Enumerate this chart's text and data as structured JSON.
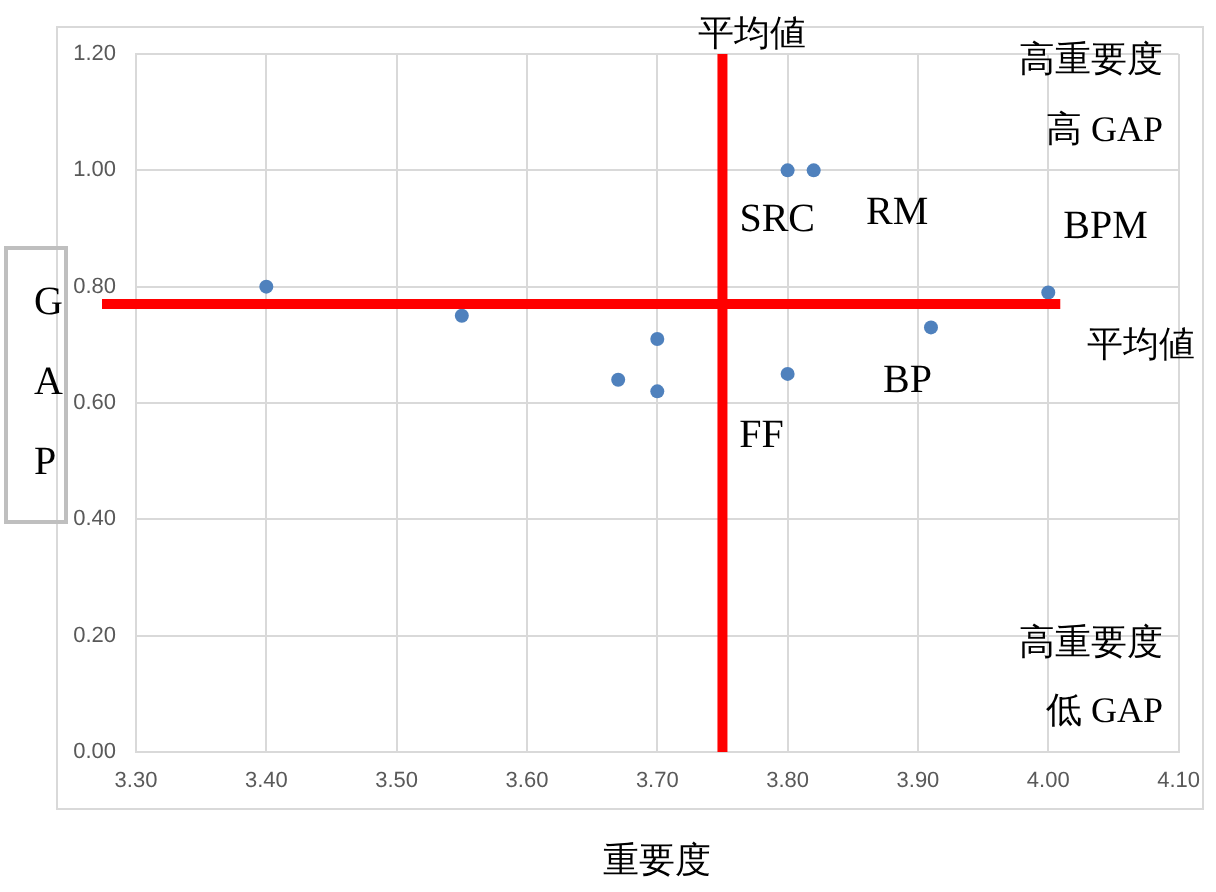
{
  "chart_data": {
    "type": "scatter",
    "xlabel": "重要度",
    "ylabel": "GAP",
    "series": [
      {
        "color": "#4f81bd",
        "x": [
          3.4,
          3.55,
          3.7,
          3.67,
          3.7,
          3.8,
          3.82,
          3.8,
          3.91,
          4.0
        ],
        "values": [
          0.8,
          0.75,
          0.71,
          0.64,
          0.62,
          1.0,
          1.0,
          0.65,
          0.73,
          0.79
        ]
      }
    ],
    "xlim": [
      3.3,
      4.1
    ],
    "ylim": [
      0,
      1.2
    ],
    "xticks": [
      {
        "value": 3.3,
        "label": "3.30"
      },
      {
        "value": 3.4,
        "label": "3.40"
      },
      {
        "value": 3.5,
        "label": "3.50"
      },
      {
        "value": 3.6,
        "label": "3.60"
      },
      {
        "value": 3.7,
        "label": "3.70"
      },
      {
        "value": 3.8,
        "label": "3.80"
      },
      {
        "value": 3.9,
        "label": "3.90"
      },
      {
        "value": 4.0,
        "label": "4.00"
      },
      {
        "value": 4.1,
        "label": "4.10"
      }
    ],
    "yticks": [
      {
        "value": 0,
        "label": "0.00"
      },
      {
        "value": 0.2,
        "label": "0.20"
      },
      {
        "value": 0.4,
        "label": "0.40"
      },
      {
        "value": 0.6,
        "label": "0.60"
      },
      {
        "value": 0.8,
        "label": "0.80"
      },
      {
        "value": 1.0,
        "label": "1.00"
      },
      {
        "value": 1.2,
        "label": "1.20"
      }
    ],
    "ref_lines": [
      {
        "axis": "x",
        "value": 3.75,
        "label": "平均値",
        "color": "#ff0000"
      },
      {
        "axis": "y",
        "value": 0.77,
        "label": "平均値",
        "color": "#ff0000"
      }
    ],
    "annotations": [
      "SRC",
      "RM",
      "BPM",
      "BP",
      "FF",
      "高重要度",
      "高 GAP",
      "高重要度",
      "低 GAP"
    ],
    "grid": true,
    "legend": false,
    "marker": "circle"
  }
}
